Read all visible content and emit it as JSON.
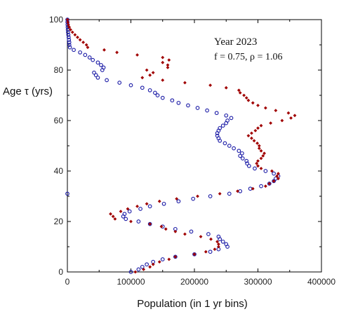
{
  "chart_data": {
    "type": "scatter",
    "xlabel": "Population (in 1 yr bins)",
    "ylabel": "Age τ (yrs)",
    "xlim": [
      0,
      400000
    ],
    "ylim": [
      0,
      100
    ],
    "xticks": [
      0,
      100000,
      200000,
      300000,
      400000
    ],
    "yticks": [
      0,
      20,
      40,
      60,
      80,
      100
    ],
    "xtick_labels": [
      "0",
      "100000",
      "200000",
      "300000",
      "400000"
    ],
    "ytick_labels": [
      "0",
      "20",
      "40",
      "60",
      "80",
      "100"
    ],
    "annotations": [
      "Year 2023",
      "f = 0.75, ρ = 1.06"
    ],
    "grid": false,
    "series": [
      {
        "marker": "circle-open",
        "color": "#1a1aa6",
        "points": [
          [
            100000,
            0
          ],
          [
            112000,
            1
          ],
          [
            118000,
            2
          ],
          [
            125000,
            3
          ],
          [
            135000,
            4
          ],
          [
            150000,
            5
          ],
          [
            170000,
            6
          ],
          [
            200000,
            7
          ],
          [
            225000,
            8
          ],
          [
            238000,
            9
          ],
          [
            252000,
            10
          ],
          [
            250000,
            11
          ],
          [
            245000,
            12
          ],
          [
            240000,
            13
          ],
          [
            238000,
            14
          ],
          [
            222000,
            15
          ],
          [
            195000,
            16
          ],
          [
            170000,
            17
          ],
          [
            150000,
            18
          ],
          [
            130000,
            19
          ],
          [
            112000,
            20
          ],
          [
            92000,
            21
          ],
          [
            88000,
            22
          ],
          [
            90000,
            23
          ],
          [
            98000,
            24
          ],
          [
            115000,
            25
          ],
          [
            130000,
            26
          ],
          [
            152000,
            27
          ],
          [
            175000,
            28
          ],
          [
            198000,
            29
          ],
          [
            225000,
            30
          ],
          [
            255000,
            31
          ],
          [
            272000,
            32
          ],
          [
            288000,
            33
          ],
          [
            305000,
            34
          ],
          [
            318000,
            35
          ],
          [
            325000,
            36
          ],
          [
            328000,
            37
          ],
          [
            332000,
            38
          ],
          [
            325000,
            39
          ],
          [
            312000,
            40
          ],
          [
            295000,
            41
          ],
          [
            286000,
            42
          ],
          [
            283000,
            43
          ],
          [
            282000,
            44
          ],
          [
            276000,
            45
          ],
          [
            272000,
            46
          ],
          [
            275000,
            47
          ],
          [
            270000,
            48
          ],
          [
            262000,
            49
          ],
          [
            255000,
            50
          ],
          [
            248000,
            51
          ],
          [
            240000,
            52
          ],
          [
            238000,
            53
          ],
          [
            236000,
            54
          ],
          [
            236000,
            55
          ],
          [
            238000,
            56
          ],
          [
            240000,
            57
          ],
          [
            245000,
            58
          ],
          [
            250000,
            59
          ],
          [
            252000,
            60
          ],
          [
            258000,
            61
          ],
          [
            250000,
            62
          ],
          [
            235000,
            63
          ],
          [
            220000,
            64
          ],
          [
            205000,
            65
          ],
          [
            190000,
            66
          ],
          [
            175000,
            67
          ],
          [
            165000,
            68
          ],
          [
            150000,
            69
          ],
          [
            142000,
            70
          ],
          [
            138000,
            71
          ],
          [
            130000,
            72
          ],
          [
            118000,
            73
          ],
          [
            100000,
            74
          ],
          [
            82000,
            75
          ],
          [
            62000,
            76
          ],
          [
            48000,
            77
          ],
          [
            45000,
            78
          ],
          [
            42000,
            79
          ],
          [
            55000,
            80
          ],
          [
            57000,
            81
          ],
          [
            53000,
            82
          ],
          [
            48000,
            83
          ],
          [
            40000,
            84
          ],
          [
            35000,
            85
          ],
          [
            28000,
            86
          ],
          [
            20000,
            87
          ],
          [
            10000,
            88
          ],
          [
            4000,
            89
          ],
          [
            3000,
            90
          ],
          [
            3000,
            91
          ],
          [
            2500,
            92
          ],
          [
            2000,
            93
          ],
          [
            1500,
            94
          ],
          [
            1000,
            95
          ],
          [
            700,
            96
          ],
          [
            500,
            97
          ],
          [
            300,
            98
          ],
          [
            100,
            99
          ],
          [
            50,
            100
          ],
          [
            0,
            31
          ]
        ]
      },
      {
        "marker": "diamond-filled",
        "color": "#a00000",
        "points": [
          [
            107000,
            0
          ],
          [
            120000,
            1
          ],
          [
            130000,
            2
          ],
          [
            135000,
            3
          ],
          [
            145000,
            4
          ],
          [
            160000,
            5
          ],
          [
            170000,
            6
          ],
          [
            200000,
            7
          ],
          [
            218000,
            8
          ],
          [
            232000,
            9
          ],
          [
            238000,
            10
          ],
          [
            238000,
            11
          ],
          [
            236000,
            12
          ],
          [
            226000,
            13
          ],
          [
            210000,
            14
          ],
          [
            185000,
            15
          ],
          [
            170000,
            16
          ],
          [
            155000,
            17
          ],
          [
            148000,
            18
          ],
          [
            130000,
            19
          ],
          [
            100000,
            20
          ],
          [
            75000,
            21
          ],
          [
            72000,
            22
          ],
          [
            68000,
            23
          ],
          [
            84000,
            24
          ],
          [
            95000,
            25
          ],
          [
            110000,
            26
          ],
          [
            125000,
            27
          ],
          [
            145000,
            28
          ],
          [
            172000,
            29
          ],
          [
            205000,
            30
          ],
          [
            240000,
            31
          ],
          [
            268000,
            32
          ],
          [
            292000,
            33
          ],
          [
            312000,
            34
          ],
          [
            318000,
            35
          ],
          [
            325000,
            36
          ],
          [
            332000,
            37
          ],
          [
            330000,
            38
          ],
          [
            332000,
            39
          ],
          [
            322000,
            40
          ],
          [
            305000,
            41
          ],
          [
            300000,
            42
          ],
          [
            298000,
            43
          ],
          [
            300000,
            44
          ],
          [
            305000,
            45
          ],
          [
            308000,
            46
          ],
          [
            310000,
            47
          ],
          [
            305000,
            48
          ],
          [
            302000,
            49
          ],
          [
            302000,
            50
          ],
          [
            299000,
            51
          ],
          [
            294000,
            52
          ],
          [
            290000,
            53
          ],
          [
            285000,
            54
          ],
          [
            290000,
            55
          ],
          [
            296000,
            56
          ],
          [
            300000,
            57
          ],
          [
            305000,
            58
          ],
          [
            320000,
            59
          ],
          [
            338000,
            60
          ],
          [
            352000,
            61
          ],
          [
            358000,
            62
          ],
          [
            348000,
            63
          ],
          [
            328000,
            64
          ],
          [
            312000,
            65
          ],
          [
            300000,
            66
          ],
          [
            292000,
            67
          ],
          [
            285000,
            68
          ],
          [
            282000,
            69
          ],
          [
            278000,
            70
          ],
          [
            272000,
            71
          ],
          [
            270000,
            72
          ],
          [
            250000,
            73
          ],
          [
            225000,
            74
          ],
          [
            185000,
            75
          ],
          [
            150000,
            76
          ],
          [
            118000,
            77
          ],
          [
            130000,
            78
          ],
          [
            135000,
            79
          ],
          [
            125000,
            80
          ],
          [
            158000,
            81
          ],
          [
            158000,
            82
          ],
          [
            150000,
            83
          ],
          [
            160000,
            84
          ],
          [
            150000,
            85
          ],
          [
            110000,
            86
          ],
          [
            78000,
            87
          ],
          [
            58000,
            88
          ],
          [
            32000,
            89
          ],
          [
            30000,
            90
          ],
          [
            25000,
            91
          ],
          [
            20000,
            92
          ],
          [
            16000,
            93
          ],
          [
            12000,
            94
          ],
          [
            8000,
            95
          ],
          [
            5000,
            96
          ],
          [
            3000,
            97
          ],
          [
            1500,
            98
          ],
          [
            700,
            99
          ],
          [
            200,
            100
          ]
        ]
      }
    ]
  }
}
